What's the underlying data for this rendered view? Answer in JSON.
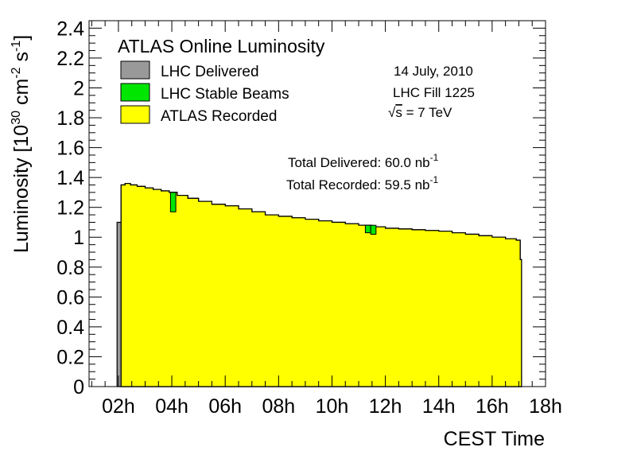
{
  "chart_data": {
    "type": "area",
    "title": "ATLAS Online Luminosity",
    "xlabel": "CEST Time",
    "ylabel": "Luminosity [10",
    "ylabel_exp1": "30",
    "ylabel_mid": " cm",
    "ylabel_exp2": "-2",
    "ylabel_mid2": " s",
    "ylabel_exp3": "-1",
    "ylabel_end": "]",
    "xlim": [
      0.9,
      18
    ],
    "ylim": [
      0,
      2.45
    ],
    "x_ticks": [
      2,
      4,
      6,
      8,
      10,
      12,
      14,
      16,
      18
    ],
    "x_tick_labels": [
      "02h",
      "04h",
      "06h",
      "08h",
      "10h",
      "12h",
      "14h",
      "16h",
      "18h"
    ],
    "y_ticks": [
      0,
      0.2,
      0.4,
      0.6,
      0.8,
      1,
      1.2,
      1.4,
      1.6,
      1.8,
      2,
      2.2,
      2.4
    ],
    "y_tick_labels": [
      "0",
      "0.2",
      "0.4",
      "0.6",
      "0.8",
      "1",
      "1.2",
      "1.4",
      "1.6",
      "1.8",
      "2",
      "2.2",
      "2.4"
    ],
    "legend_placement": "top-left",
    "series": [
      {
        "name": "LHC Delivered",
        "color": "#999999",
        "x": [
          1.95,
          2.1,
          2.25,
          2.45,
          2.7,
          3.0,
          3.3,
          3.6,
          3.9,
          4.2,
          4.6,
          5.0,
          5.5,
          6.0,
          6.5,
          7.0,
          7.5,
          8.0,
          8.5,
          9.0,
          9.5,
          10.0,
          10.5,
          11.0,
          11.5,
          12.0,
          12.5,
          13.0,
          13.5,
          14.0,
          14.5,
          15.0,
          15.5,
          16.0,
          16.5,
          16.9,
          17.05
        ],
        "y": [
          1.1,
          1.35,
          1.36,
          1.35,
          1.34,
          1.33,
          1.32,
          1.31,
          1.3,
          1.28,
          1.26,
          1.24,
          1.22,
          1.21,
          1.19,
          1.17,
          1.15,
          1.14,
          1.13,
          1.12,
          1.11,
          1.1,
          1.09,
          1.08,
          1.07,
          1.06,
          1.055,
          1.05,
          1.045,
          1.04,
          1.03,
          1.02,
          1.01,
          1.0,
          0.99,
          0.98,
          0.85
        ]
      },
      {
        "name": "LHC Stable Beams",
        "color": "#00e600",
        "x": [
          2.1,
          2.25,
          2.45,
          2.7,
          3.0,
          3.3,
          3.6,
          3.9,
          4.2,
          4.6,
          5.0,
          5.5,
          6.0,
          6.5,
          7.0,
          7.5,
          8.0,
          8.5,
          9.0,
          9.5,
          10.0,
          10.5,
          11.0,
          11.5,
          12.0,
          12.5,
          13.0,
          13.5,
          14.0,
          14.5,
          15.0,
          15.5,
          16.0,
          16.5,
          16.9,
          17.05
        ],
        "y": [
          1.35,
          1.36,
          1.35,
          1.34,
          1.33,
          1.32,
          1.31,
          1.3,
          1.28,
          1.26,
          1.24,
          1.22,
          1.21,
          1.19,
          1.17,
          1.15,
          1.14,
          1.13,
          1.12,
          1.11,
          1.1,
          1.09,
          1.08,
          1.07,
          1.06,
          1.055,
          1.05,
          1.045,
          1.04,
          1.03,
          1.02,
          1.01,
          1.0,
          0.99,
          0.98,
          0.85
        ]
      },
      {
        "name": "ATLAS Recorded",
        "color": "#ffff00",
        "x": [
          2.1,
          2.25,
          2.45,
          2.7,
          3.0,
          3.3,
          3.6,
          3.9,
          4.2,
          4.6,
          5.0,
          5.5,
          6.0,
          6.5,
          7.0,
          7.5,
          8.0,
          8.5,
          9.0,
          9.5,
          10.0,
          10.5,
          11.0,
          11.5,
          12.0,
          12.5,
          13.0,
          13.5,
          14.0,
          14.5,
          15.0,
          15.5,
          16.0,
          16.5,
          16.9,
          17.05
        ],
        "y": [
          1.35,
          1.36,
          1.35,
          1.34,
          1.33,
          1.32,
          1.31,
          1.3,
          1.28,
          1.26,
          1.24,
          1.22,
          1.21,
          1.19,
          1.17,
          1.15,
          1.14,
          1.13,
          1.12,
          1.11,
          1.1,
          1.09,
          1.08,
          1.07,
          1.06,
          1.055,
          1.05,
          1.045,
          1.04,
          1.03,
          1.02,
          1.01,
          1.0,
          0.99,
          0.98,
          0.85
        ],
        "dips": [
          {
            "x0": 3.95,
            "x1": 4.15,
            "y": 1.17
          },
          {
            "x0": 11.25,
            "x1": 11.45,
            "y": 1.03
          },
          {
            "x0": 11.45,
            "x1": 11.65,
            "y": 1.02
          }
        ]
      }
    ],
    "annotations": {
      "date": "14 July, 2010",
      "fill": "LHC Fill 1225",
      "sqrt": "√",
      "energy_s": "s",
      "energy_rest": " = 7 TeV",
      "delivered_label": "Total Delivered: 60.0 nb",
      "delivered_exp": "-1",
      "recorded_label": "Total Recorded: 59.5 nb",
      "recorded_exp": "-1"
    }
  }
}
